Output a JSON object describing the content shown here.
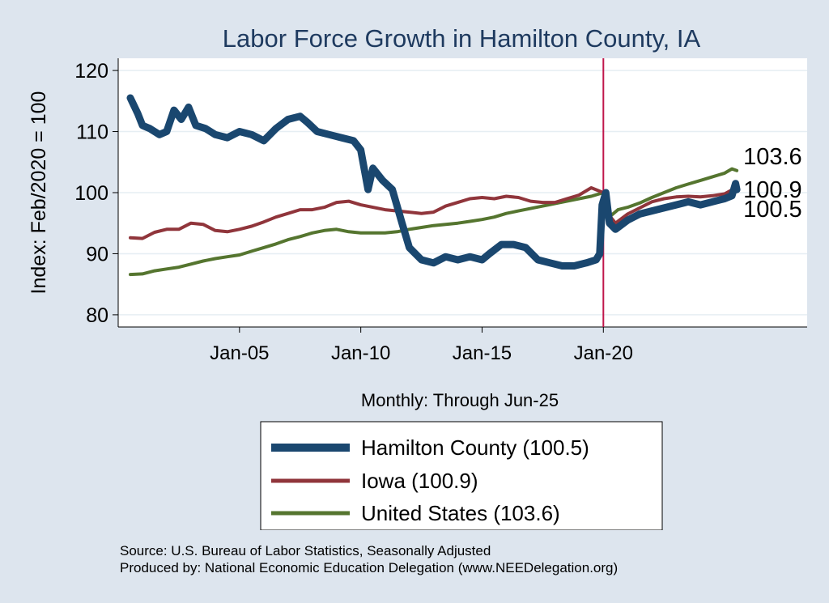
{
  "chart_data": {
    "type": "line",
    "title": "Labor Force Growth in Hamilton  County, IA",
    "xlabel": "Monthly: Through Jun-25",
    "ylabel": "Index: Feb/2020 = 100",
    "xlim": [
      2000.0,
      2028.4
    ],
    "ylim": [
      78,
      122
    ],
    "yticks": [
      80,
      90,
      100,
      110,
      120
    ],
    "xticks": [
      {
        "value": 2005.0,
        "label": "Jan-05"
      },
      {
        "value": 2010.0,
        "label": "Jan-10"
      },
      {
        "value": 2015.0,
        "label": "Jan-15"
      },
      {
        "value": 2020.0,
        "label": "Jan-20"
      }
    ],
    "reference_line_x": 2020.0,
    "series": [
      {
        "name": "Hamilton  County",
        "legend": "Hamilton  County (100.5)",
        "end_label": "100.5",
        "color": "#1a476f",
        "points": [
          [
            2000.5,
            115.5
          ],
          [
            2000.8,
            113.0
          ],
          [
            2001.0,
            111.0
          ],
          [
            2001.3,
            110.5
          ],
          [
            2001.7,
            109.5
          ],
          [
            2002.0,
            110.0
          ],
          [
            2002.3,
            113.5
          ],
          [
            2002.6,
            112.0
          ],
          [
            2002.9,
            114.0
          ],
          [
            2003.2,
            111.0
          ],
          [
            2003.6,
            110.5
          ],
          [
            2004.0,
            109.5
          ],
          [
            2004.5,
            109.0
          ],
          [
            2005.0,
            110.0
          ],
          [
            2005.5,
            109.5
          ],
          [
            2006.0,
            108.5
          ],
          [
            2006.5,
            110.5
          ],
          [
            2007.0,
            112.0
          ],
          [
            2007.5,
            112.5
          ],
          [
            2007.8,
            111.5
          ],
          [
            2008.2,
            110.0
          ],
          [
            2008.7,
            109.5
          ],
          [
            2009.2,
            109.0
          ],
          [
            2009.7,
            108.5
          ],
          [
            2010.0,
            107.0
          ],
          [
            2010.3,
            100.5
          ],
          [
            2010.5,
            104.0
          ],
          [
            2010.9,
            102.0
          ],
          [
            2011.3,
            100.5
          ],
          [
            2011.7,
            95.0
          ],
          [
            2012.0,
            91.0
          ],
          [
            2012.5,
            89.0
          ],
          [
            2013.0,
            88.5
          ],
          [
            2013.5,
            89.5
          ],
          [
            2014.0,
            89.0
          ],
          [
            2014.5,
            89.5
          ],
          [
            2015.0,
            89.0
          ],
          [
            2015.3,
            90.0
          ],
          [
            2015.8,
            91.5
          ],
          [
            2016.3,
            91.5
          ],
          [
            2016.8,
            91.0
          ],
          [
            2017.3,
            89.0
          ],
          [
            2017.8,
            88.5
          ],
          [
            2018.3,
            88.0
          ],
          [
            2018.8,
            88.0
          ],
          [
            2019.3,
            88.5
          ],
          [
            2019.7,
            89.0
          ],
          [
            2019.85,
            90.0
          ],
          [
            2019.95,
            98.0
          ],
          [
            2020.1,
            100.0
          ],
          [
            2020.25,
            95.0
          ],
          [
            2020.5,
            94.0
          ],
          [
            2021.0,
            95.5
          ],
          [
            2021.5,
            96.5
          ],
          [
            2022.0,
            97.0
          ],
          [
            2022.5,
            97.5
          ],
          [
            2023.0,
            98.0
          ],
          [
            2023.5,
            98.5
          ],
          [
            2024.0,
            98.0
          ],
          [
            2024.5,
            98.5
          ],
          [
            2025.0,
            99.0
          ],
          [
            2025.3,
            99.5
          ],
          [
            2025.45,
            101.5
          ],
          [
            2025.5,
            100.5
          ]
        ]
      },
      {
        "name": "Iowa",
        "legend": "Iowa (100.9)",
        "end_label": "100.9",
        "color": "#90353b",
        "points": [
          [
            2000.5,
            92.6
          ],
          [
            2001.0,
            92.5
          ],
          [
            2001.5,
            93.5
          ],
          [
            2002.0,
            94.0
          ],
          [
            2002.5,
            94.0
          ],
          [
            2003.0,
            95.0
          ],
          [
            2003.5,
            94.8
          ],
          [
            2004.0,
            93.8
          ],
          [
            2004.5,
            93.6
          ],
          [
            2005.0,
            94.0
          ],
          [
            2005.5,
            94.5
          ],
          [
            2006.0,
            95.2
          ],
          [
            2006.5,
            96.0
          ],
          [
            2007.0,
            96.6
          ],
          [
            2007.5,
            97.2
          ],
          [
            2008.0,
            97.2
          ],
          [
            2008.5,
            97.6
          ],
          [
            2009.0,
            98.4
          ],
          [
            2009.5,
            98.6
          ],
          [
            2010.0,
            98.0
          ],
          [
            2010.5,
            97.6
          ],
          [
            2011.0,
            97.2
          ],
          [
            2011.5,
            97.0
          ],
          [
            2012.0,
            96.8
          ],
          [
            2012.5,
            96.6
          ],
          [
            2013.0,
            96.8
          ],
          [
            2013.5,
            97.8
          ],
          [
            2014.0,
            98.4
          ],
          [
            2014.5,
            99.0
          ],
          [
            2015.0,
            99.2
          ],
          [
            2015.5,
            99.0
          ],
          [
            2016.0,
            99.4
          ],
          [
            2016.5,
            99.2
          ],
          [
            2017.0,
            98.6
          ],
          [
            2017.5,
            98.4
          ],
          [
            2018.0,
            98.4
          ],
          [
            2018.5,
            99.0
          ],
          [
            2019.0,
            99.6
          ],
          [
            2019.5,
            100.8
          ],
          [
            2020.0,
            100.0
          ],
          [
            2020.2,
            96.5
          ],
          [
            2020.5,
            95.0
          ],
          [
            2021.0,
            96.5
          ],
          [
            2021.5,
            97.5
          ],
          [
            2022.0,
            98.5
          ],
          [
            2022.5,
            99.0
          ],
          [
            2023.0,
            99.3
          ],
          [
            2023.5,
            99.4
          ],
          [
            2024.0,
            99.3
          ],
          [
            2024.5,
            99.5
          ],
          [
            2025.0,
            99.8
          ],
          [
            2025.5,
            100.9
          ]
        ]
      },
      {
        "name": "United States",
        "legend": "United States (103.6)",
        "end_label": "103.6",
        "color": "#55752f",
        "points": [
          [
            2000.5,
            86.6
          ],
          [
            2001.0,
            86.7
          ],
          [
            2001.5,
            87.2
          ],
          [
            2002.0,
            87.5
          ],
          [
            2002.5,
            87.8
          ],
          [
            2003.0,
            88.3
          ],
          [
            2003.5,
            88.8
          ],
          [
            2004.0,
            89.2
          ],
          [
            2004.5,
            89.5
          ],
          [
            2005.0,
            89.8
          ],
          [
            2005.5,
            90.4
          ],
          [
            2006.0,
            91.0
          ],
          [
            2006.5,
            91.6
          ],
          [
            2007.0,
            92.3
          ],
          [
            2007.5,
            92.8
          ],
          [
            2008.0,
            93.4
          ],
          [
            2008.5,
            93.8
          ],
          [
            2009.0,
            94.0
          ],
          [
            2009.5,
            93.6
          ],
          [
            2010.0,
            93.4
          ],
          [
            2010.5,
            93.4
          ],
          [
            2011.0,
            93.4
          ],
          [
            2011.5,
            93.6
          ],
          [
            2012.0,
            94.0
          ],
          [
            2012.5,
            94.3
          ],
          [
            2013.0,
            94.6
          ],
          [
            2013.5,
            94.8
          ],
          [
            2014.0,
            95.0
          ],
          [
            2014.5,
            95.3
          ],
          [
            2015.0,
            95.6
          ],
          [
            2015.5,
            96.0
          ],
          [
            2016.0,
            96.6
          ],
          [
            2016.5,
            97.0
          ],
          [
            2017.0,
            97.4
          ],
          [
            2017.5,
            97.8
          ],
          [
            2018.0,
            98.2
          ],
          [
            2018.5,
            98.6
          ],
          [
            2019.0,
            99.0
          ],
          [
            2019.5,
            99.4
          ],
          [
            2020.0,
            100.0
          ],
          [
            2020.15,
            97.0
          ],
          [
            2020.3,
            96.2
          ],
          [
            2020.6,
            97.2
          ],
          [
            2021.0,
            97.6
          ],
          [
            2021.5,
            98.3
          ],
          [
            2022.0,
            99.2
          ],
          [
            2022.5,
            100.0
          ],
          [
            2023.0,
            100.8
          ],
          [
            2023.5,
            101.4
          ],
          [
            2024.0,
            102.0
          ],
          [
            2024.5,
            102.6
          ],
          [
            2025.0,
            103.2
          ],
          [
            2025.3,
            103.9
          ],
          [
            2025.5,
            103.6
          ]
        ]
      }
    ]
  },
  "footer": {
    "source": "Source: U.S. Bureau of Labor Statistics, Seasonally Adjusted",
    "produced_by": "Produced by: National Economic Education Delegation (www.NEEDelegation.org)"
  }
}
